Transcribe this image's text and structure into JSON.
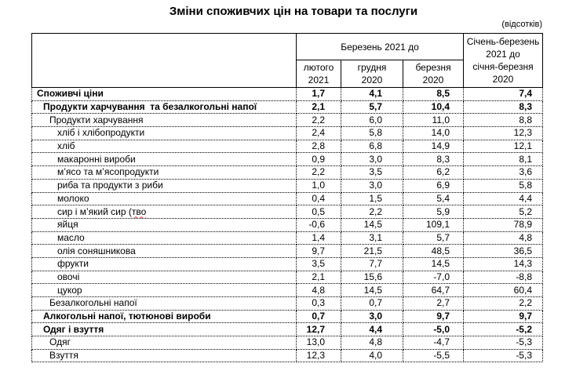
{
  "title": "Зміни споживчих цін на товари та послуги",
  "units_note": "(відсотків)",
  "spellcheck_color": "#e03030",
  "table": {
    "col_group_header": "Березень 2021 до",
    "sub_headers": [
      "лютого\n2021",
      "грудня\n2020",
      "березня\n2020"
    ],
    "period_header": "Січень-березень\n2021 до\nсічня-березня\n2020",
    "rows": [
      {
        "label": "Споживчі ціни",
        "indent": 0,
        "bold": true,
        "values": [
          "1,7",
          "4,1",
          "8,5",
          "7,4"
        ]
      },
      {
        "label": "Продукти харчування  та безалкогольні напої",
        "indent": 1,
        "bold": true,
        "values": [
          "2,1",
          "5,7",
          "10,4",
          "8,3"
        ]
      },
      {
        "label": "Продукти харчування",
        "indent": 2,
        "bold": false,
        "values": [
          "2,2",
          "6,0",
          "11,0",
          "8,8"
        ]
      },
      {
        "label": "хліб і хлібопродукти",
        "indent": 3,
        "bold": false,
        "values": [
          "2,4",
          "5,8",
          "14,0",
          "12,3"
        ]
      },
      {
        "label": "хліб",
        "indent": 3,
        "bold": false,
        "values": [
          "2,8",
          "6,8",
          "14,9",
          "12,1"
        ]
      },
      {
        "label": "макаронні вироби",
        "indent": 3,
        "bold": false,
        "values": [
          "0,9",
          "3,0",
          "8,3",
          "8,1"
        ]
      },
      {
        "label": "м’ясо та м’ясопродукти",
        "indent": 3,
        "bold": false,
        "values": [
          "2,2",
          "3,5",
          "6,2",
          "3,6"
        ]
      },
      {
        "label": "риба та продукти з риби",
        "indent": 3,
        "bold": false,
        "values": [
          "1,0",
          "3,0",
          "6,9",
          "5,8"
        ]
      },
      {
        "label": "молоко",
        "indent": 3,
        "bold": false,
        "values": [
          "0,4",
          "1,5",
          "5,4",
          "4,4"
        ]
      },
      {
        "label": "сир і м’який сир (",
        "label_misspelled": "тво",
        "indent": 3,
        "bold": false,
        "values": [
          "0,5",
          "2,2",
          "5,9",
          "5,2"
        ]
      },
      {
        "label": "яйця",
        "indent": 3,
        "bold": false,
        "values": [
          "-0,6",
          "14,5",
          "109,1",
          "78,9"
        ]
      },
      {
        "label": "масло",
        "indent": 3,
        "bold": false,
        "values": [
          "1,4",
          "3,1",
          "5,7",
          "4,8"
        ]
      },
      {
        "label": "олія соняшникова",
        "indent": 3,
        "bold": false,
        "values": [
          "9,7",
          "21,5",
          "48,5",
          "36,5"
        ]
      },
      {
        "label": "фрукти",
        "indent": 3,
        "bold": false,
        "values": [
          "3,5",
          "7,7",
          "14,5",
          "14,3"
        ]
      },
      {
        "label": "овочі",
        "indent": 3,
        "bold": false,
        "values": [
          "2,1",
          "15,6",
          "-7,0",
          "-8,8"
        ]
      },
      {
        "label": "цукор",
        "indent": 3,
        "bold": false,
        "values": [
          "4,8",
          "14,5",
          "64,7",
          "60,4"
        ]
      },
      {
        "label": "Безалкогольні напої",
        "indent": 2,
        "bold": false,
        "values": [
          "0,3",
          "0,7",
          "2,7",
          "2,2"
        ]
      },
      {
        "label": "Алкогольні напої, тютюнові вироби",
        "indent": 1,
        "bold": true,
        "values": [
          "0,7",
          "3,0",
          "9,7",
          "9,7"
        ]
      },
      {
        "label": "Одяг і взуття",
        "indent": 1,
        "bold": true,
        "values": [
          "12,7",
          "4,4",
          "-5,0",
          "-5,2"
        ]
      },
      {
        "label": "Одяг",
        "indent": 2,
        "bold": false,
        "values": [
          "13,0",
          "4,8",
          "-4,7",
          "-5,3"
        ]
      },
      {
        "label": "Взуття",
        "indent": 2,
        "bold": false,
        "values": [
          "12,3",
          "4,0",
          "-5,5",
          "-5,3"
        ]
      }
    ]
  }
}
